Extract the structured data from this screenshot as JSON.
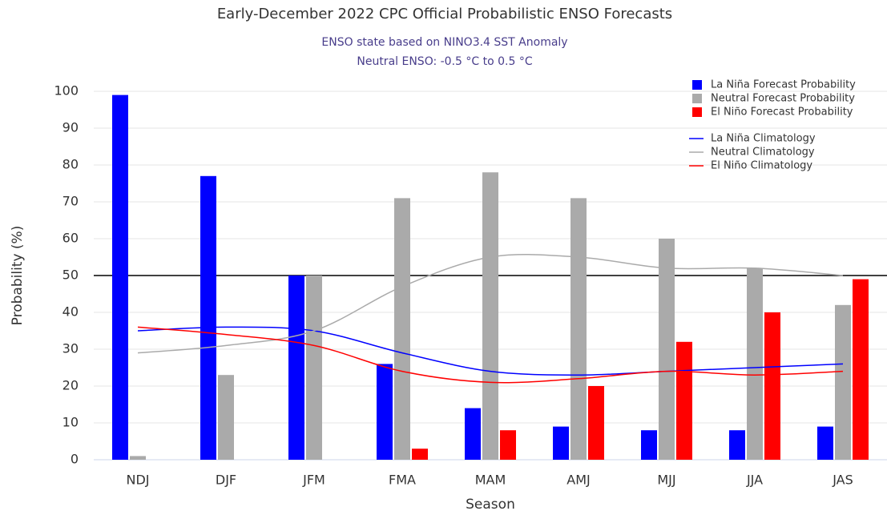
{
  "chart_data": {
    "type": "bar",
    "title": "Early-December 2022 CPC Official Probabilistic ENSO Forecasts",
    "subtitle": [
      "ENSO state based on NINO3.4 SST Anomaly",
      "Neutral ENSO: -0.5 °C to 0.5 °C"
    ],
    "x_label": "Season",
    "y_label": "Probability (%)",
    "categories": [
      "NDJ",
      "DJF",
      "JFM",
      "FMA",
      "MAM",
      "AMJ",
      "MJJ",
      "JJA",
      "JAS"
    ],
    "series": [
      {
        "name": "La Niña Forecast Probability",
        "type": "bar",
        "color": "#0000ff",
        "values": [
          99,
          77,
          50,
          26,
          14,
          9,
          8,
          8,
          9
        ]
      },
      {
        "name": "Neutral Forecast Probability",
        "type": "bar",
        "color": "#aaaaaa",
        "values": [
          1,
          23,
          50,
          71,
          78,
          71,
          60,
          52,
          42
        ]
      },
      {
        "name": "El Niño Forecast Probability",
        "type": "bar",
        "color": "#ff0000",
        "values": [
          0,
          0,
          0,
          3,
          8,
          20,
          32,
          40,
          49
        ]
      },
      {
        "name": "La Niña Climatology",
        "type": "line",
        "color": "#0000ff",
        "values": [
          35,
          36,
          35,
          29,
          24,
          23,
          24,
          25,
          26
        ]
      },
      {
        "name": "Neutral Climatology",
        "type": "line",
        "color": "#aaaaaa",
        "values": [
          29,
          31,
          35,
          47,
          55,
          55,
          52,
          52,
          50
        ]
      },
      {
        "name": "El Niño Climatology",
        "type": "line",
        "color": "#ff0000",
        "values": [
          36,
          34,
          31,
          24,
          21,
          22,
          24,
          23,
          24
        ]
      }
    ],
    "ylim": [
      0,
      100
    ],
    "yticks": [
      0,
      10,
      20,
      30,
      40,
      50,
      60,
      70,
      80,
      90,
      100
    ],
    "grid": true,
    "reference_line": 50,
    "legend": "upper right"
  }
}
